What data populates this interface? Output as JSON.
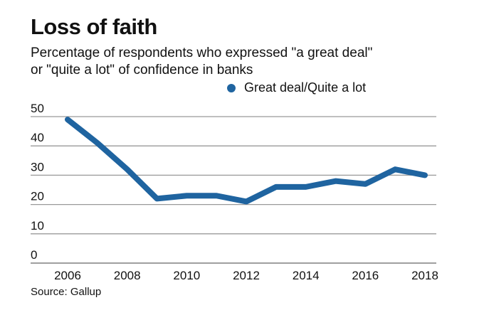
{
  "chart_data": {
    "type": "line",
    "title": "Loss of faith",
    "subtitle": "Percentage of respondents who expressed \"a great deal\" or \"quite a lot\" of confidence in banks",
    "subtitle_lines": [
      "Percentage of respondents who expressed \"a great deal\"",
      "or \"quite a lot\" of confidence in banks"
    ],
    "xlabel": "",
    "ylabel": "",
    "x": [
      2006,
      2007,
      2008,
      2009,
      2010,
      2011,
      2012,
      2013,
      2014,
      2015,
      2016,
      2017,
      2018
    ],
    "series": [
      {
        "name": "Great deal/Quite a lot",
        "color": "#1f64a0",
        "values": [
          49,
          41,
          32,
          22,
          23,
          23,
          21,
          26,
          26,
          28,
          27,
          32,
          30
        ]
      }
    ],
    "xlim": [
      2006,
      2018
    ],
    "ylim": [
      0,
      50
    ],
    "yticks": [
      "50",
      "40",
      "30",
      "20",
      "10",
      "0"
    ],
    "ytick_values": [
      50,
      40,
      30,
      20,
      10,
      0
    ],
    "xticks": [
      "2006",
      "2008",
      "2010",
      "2012",
      "2014",
      "2016",
      "2018"
    ],
    "xtick_values": [
      2006,
      2008,
      2010,
      2012,
      2014,
      2016,
      2018
    ],
    "grid": true,
    "legend_position": "top-right",
    "source": "Source: Gallup"
  }
}
